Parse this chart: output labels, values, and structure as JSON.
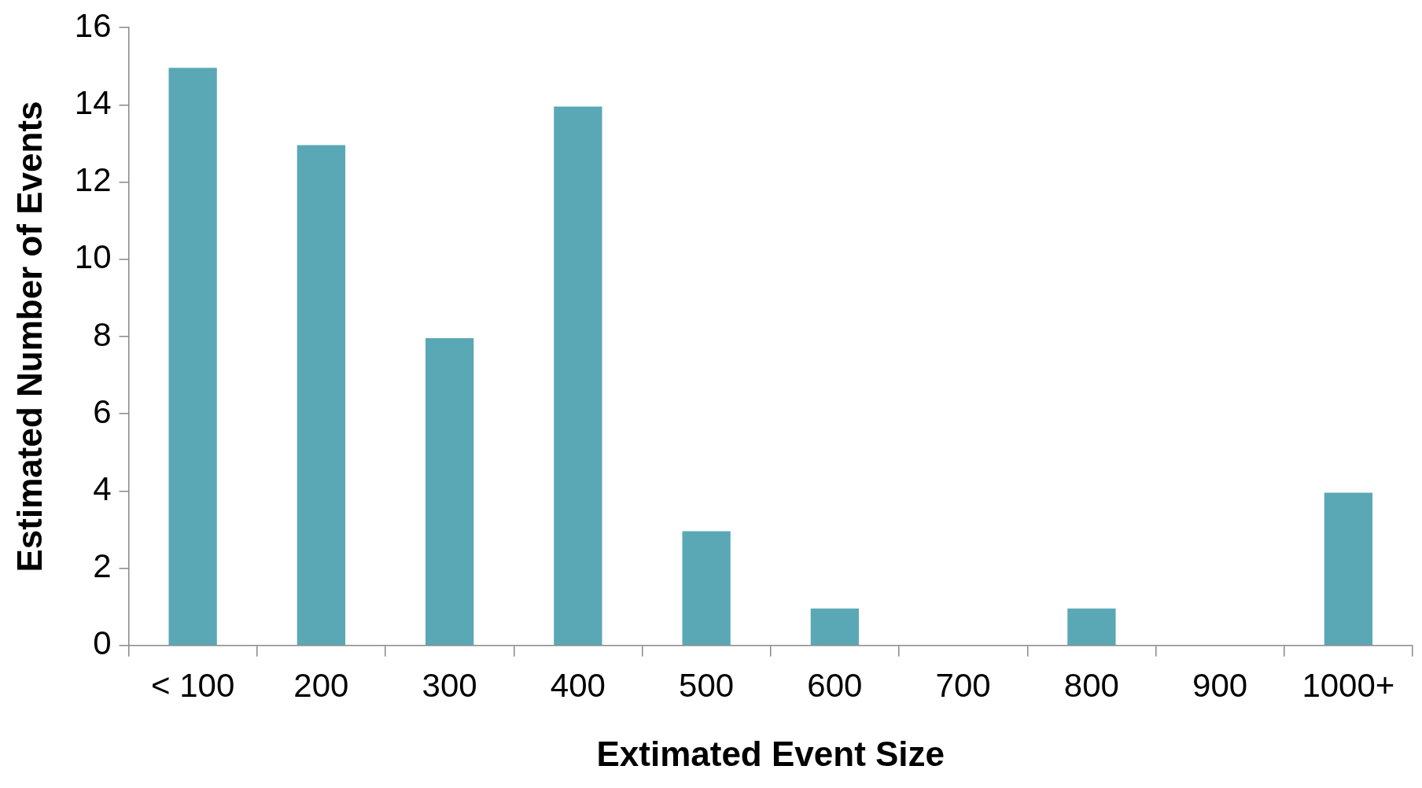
{
  "chart_data": {
    "type": "bar",
    "xlabel": "Extimated Event Size",
    "ylabel": "Estimated Number of Events",
    "categories": [
      "< 100",
      "200",
      "300",
      "400",
      "500",
      "600",
      "700",
      "800",
      "900",
      "1000+"
    ],
    "values": [
      15,
      13,
      8,
      14,
      3,
      1,
      0,
      1,
      0,
      4
    ],
    "color": "#5aa8b5",
    "ylim": [
      0,
      16
    ],
    "yticks": [
      0,
      2,
      4,
      6,
      8,
      10,
      12,
      14,
      16
    ],
    "grid": false,
    "legend": false
  }
}
